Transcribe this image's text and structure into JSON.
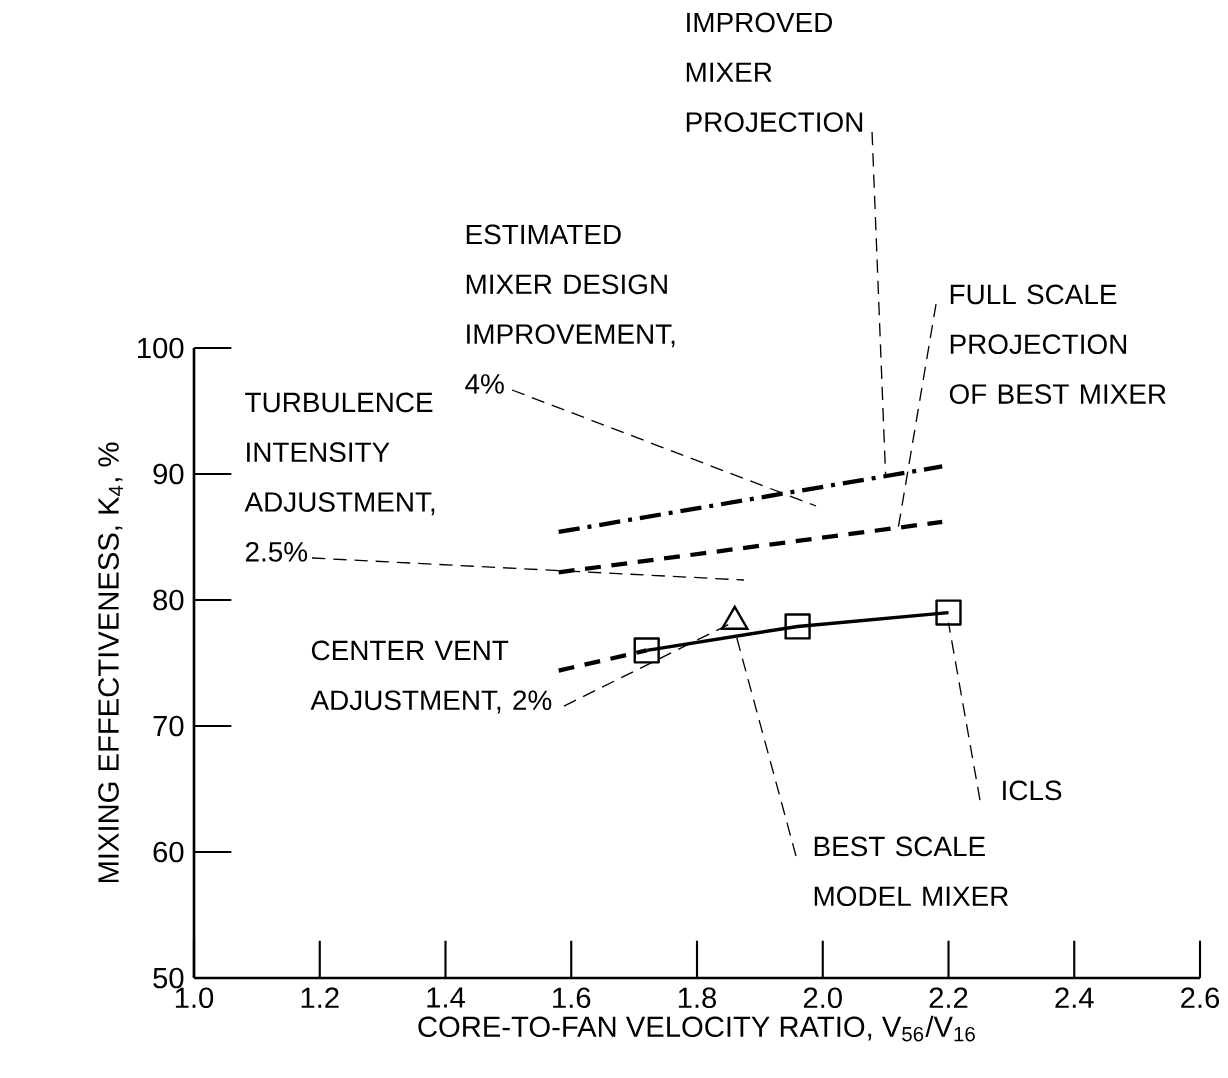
{
  "chart_data": {
    "type": "line",
    "xlabel": "CORE-TO-FAN VELOCITY RATIO, V$_{56}$/V$_{16}$",
    "ylabel": "MIXING EFFECTIVENESS, K$_{4}$, %",
    "xlim": [
      1.0,
      2.6
    ],
    "ylim": [
      50,
      100
    ],
    "xticks": [
      {
        "value": 1.0,
        "label": "1.0"
      },
      1.2,
      1.4,
      1.6,
      1.8,
      {
        "value": 2.0,
        "label": "2.0"
      },
      2.2,
      2.4,
      2.6
    ],
    "yticks": [
      50,
      60,
      70,
      80,
      90,
      100
    ],
    "series": [
      {
        "x": [
          1.72,
          1.96,
          2.2
        ],
        "values": [
          76.0,
          77.9,
          79.0
        ],
        "marker": "square",
        "line_style": "solid",
        "color": "#000000"
      },
      {
        "x": [
          1.58,
          1.72
        ],
        "values": [
          74.4,
          76.0
        ],
        "marker": "none",
        "line_style": "dashed",
        "color": "#000000"
      },
      {
        "type": "scatter",
        "x": [
          1.86
        ],
        "values": [
          78.3
        ],
        "marker": "triangle",
        "color": "#000000"
      },
      {
        "x": [
          1.58,
          2.19
        ],
        "values": [
          82.2,
          86.2
        ],
        "marker": "none",
        "line_style": "dashed",
        "color": "#000000"
      },
      {
        "x": [
          1.58,
          2.19
        ],
        "values": [
          85.4,
          90.6
        ],
        "marker": "none",
        "line_style": "dashdot",
        "color": "#000000"
      }
    ],
    "annotations": [
      {
        "text": "IMPROVED MIXER PROJECTION",
        "x": 2.1,
        "y": 89.8
      },
      "ESTIMATED MIXER DESIGN IMPROVEMENT, 4%",
      {
        "text": "FULL SCALE PROJECTION OF BEST MIXER",
        "x": 2.12,
        "y": 85.7
      },
      "TURBULENCE INTENSITY ADJUSTMENT, 2.5%",
      {
        "text": "CENTER VENT ADJUSTMENT, 2%",
        "x": 1.86,
        "y": 78.3
      },
      {
        "text": "ICLS",
        "x": 2.2,
        "y": 78.2
      },
      {
        "text": "BEST SCALE MODEL MIXER",
        "x": 1.86,
        "y": 77.6
      }
    ],
    "grid": false
  }
}
